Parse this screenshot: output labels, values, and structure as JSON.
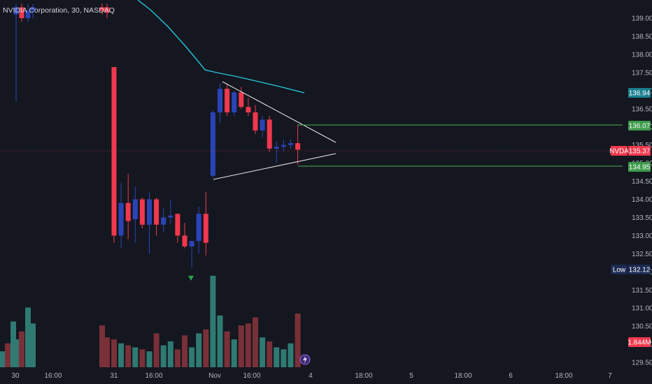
{
  "header": {
    "title": "NVIDIA Corporation, 30, NASDAQ"
  },
  "colors": {
    "background": "#14171f",
    "up": "#2a44b8",
    "down": "#f0384e",
    "volume_up": "#2f7a72",
    "volume_down": "#7a3038",
    "ma_line": "#26c6da",
    "trendline": "#e8e8e8",
    "level_line": "#4caf50",
    "current_line": "#f0384e",
    "low_tag": "#1c2a52"
  },
  "price_axis": {
    "ticks": [
      "139.00",
      "138.50",
      "138.00",
      "137.50",
      "137.00",
      "136.50",
      "136.00",
      "135.50",
      "135.00",
      "134.50",
      "134.00",
      "133.50",
      "133.00",
      "132.50",
      "132.00",
      "131.50",
      "131.00",
      "130.50",
      "130.00",
      "129.50"
    ]
  },
  "time_axis": {
    "ticks": [
      "30",
      "16:00",
      "31",
      "16:00",
      "Nov",
      "16:00",
      "4",
      "18:00",
      "5",
      "18:00",
      "6",
      "18:00",
      "7"
    ]
  },
  "price_tags": {
    "ma": {
      "value": "136.94"
    },
    "resistance": {
      "value": "136.07"
    },
    "current": {
      "label": "NVDA",
      "value": "135.37"
    },
    "support": {
      "value": "134.95"
    },
    "low": {
      "label": "Low",
      "value": "132.12"
    },
    "volume": {
      "value": "1.844M"
    }
  },
  "chart_data": {
    "type": "candlestick",
    "symbol": "NVDA",
    "interval": "30",
    "exchange": "NASDAQ",
    "ylim": [
      129.4,
      139.3
    ],
    "candles": [
      {
        "o": 139.1,
        "h": 139.4,
        "l": 136.7,
        "c": 139.3
      },
      {
        "o": 139.3,
        "h": 139.4,
        "l": 138.9,
        "c": 139.0
      },
      {
        "o": 139.0,
        "h": 139.4,
        "l": 138.9,
        "c": 139.2
      },
      {
        "o": 139.2,
        "h": 139.4,
        "l": 139.0,
        "c": 139.3
      },
      {
        "o": 139.3,
        "h": 139.4,
        "l": 139.1,
        "c": 139.2
      },
      {
        "o": 139.3,
        "h": 139.4,
        "l": 139.0,
        "c": 139.15
      },
      {
        "o": 137.65,
        "h": 137.65,
        "l": 132.8,
        "c": 133.0
      },
      {
        "o": 133.0,
        "h": 134.45,
        "l": 132.65,
        "c": 133.9
      },
      {
        "o": 133.9,
        "h": 134.7,
        "l": 132.9,
        "c": 133.4
      },
      {
        "o": 133.45,
        "h": 134.35,
        "l": 132.8,
        "c": 134.0
      },
      {
        "o": 134.0,
        "h": 134.05,
        "l": 133.2,
        "c": 133.3
      },
      {
        "o": 133.3,
        "h": 134.2,
        "l": 132.5,
        "c": 134.0
      },
      {
        "o": 134.0,
        "h": 134.05,
        "l": 133.0,
        "c": 133.3
      },
      {
        "o": 133.3,
        "h": 133.75,
        "l": 133.1,
        "c": 133.5
      },
      {
        "o": 133.5,
        "h": 134.0,
        "l": 133.3,
        "c": 133.55
      },
      {
        "o": 133.6,
        "h": 133.6,
        "l": 132.8,
        "c": 133.0
      },
      {
        "o": 133.0,
        "h": 133.35,
        "l": 132.65,
        "c": 132.7
      },
      {
        "o": 132.7,
        "h": 132.85,
        "l": 132.12,
        "c": 132.85
      },
      {
        "o": 132.85,
        "h": 133.8,
        "l": 132.5,
        "c": 133.6
      },
      {
        "o": 133.6,
        "h": 134.2,
        "l": 132.45,
        "c": 132.8
      },
      {
        "o": 134.65,
        "h": 136.45,
        "l": 134.6,
        "c": 136.4
      },
      {
        "o": 136.4,
        "h": 137.2,
        "l": 136.1,
        "c": 137.05
      },
      {
        "o": 137.05,
        "h": 137.2,
        "l": 136.3,
        "c": 136.4
      },
      {
        "o": 136.4,
        "h": 137.0,
        "l": 136.3,
        "c": 136.95
      },
      {
        "o": 136.95,
        "h": 137.1,
        "l": 136.5,
        "c": 136.55
      },
      {
        "o": 136.55,
        "h": 136.8,
        "l": 136.3,
        "c": 136.4
      },
      {
        "o": 136.4,
        "h": 136.6,
        "l": 135.8,
        "c": 135.9
      },
      {
        "o": 135.9,
        "h": 136.3,
        "l": 135.7,
        "c": 136.2
      },
      {
        "o": 136.2,
        "h": 136.3,
        "l": 135.3,
        "c": 135.4
      },
      {
        "o": 135.4,
        "h": 135.6,
        "l": 135.0,
        "c": 135.45
      },
      {
        "o": 135.45,
        "h": 135.65,
        "l": 135.3,
        "c": 135.5
      },
      {
        "o": 135.5,
        "h": 135.65,
        "l": 135.4,
        "c": 135.55
      },
      {
        "o": 135.55,
        "h": 136.07,
        "l": 134.95,
        "c": 135.37
      }
    ],
    "volume": [
      14,
      18,
      30,
      22,
      21,
      15,
      14,
      12,
      11,
      10,
      9,
      8,
      17,
      11,
      13,
      9,
      16,
      10,
      17,
      19,
      46,
      26,
      18,
      14,
      21,
      22,
      25,
      15,
      13,
      10,
      9,
      12,
      27
    ],
    "ma": [
      [
        0,
        139.6
      ],
      [
        2,
        139.1
      ],
      [
        4,
        138.5
      ],
      [
        6,
        138.0
      ],
      [
        8,
        137.6
      ],
      [
        9,
        137.5
      ],
      [
        10,
        137.45
      ],
      [
        12,
        137.35
      ],
      [
        14,
        137.2
      ],
      [
        15,
        137.05
      ],
      [
        17,
        136.95
      ]
    ],
    "trendlines": [
      {
        "from": [
          0,
          137.2
        ],
        "to": [
          15,
          135.55
        ]
      },
      {
        "from": [
          -1,
          134.6
        ],
        "to": [
          15,
          135.38
        ]
      }
    ],
    "levels": [
      136.07,
      134.95
    ],
    "current_price": 135.37,
    "low": 132.12
  }
}
